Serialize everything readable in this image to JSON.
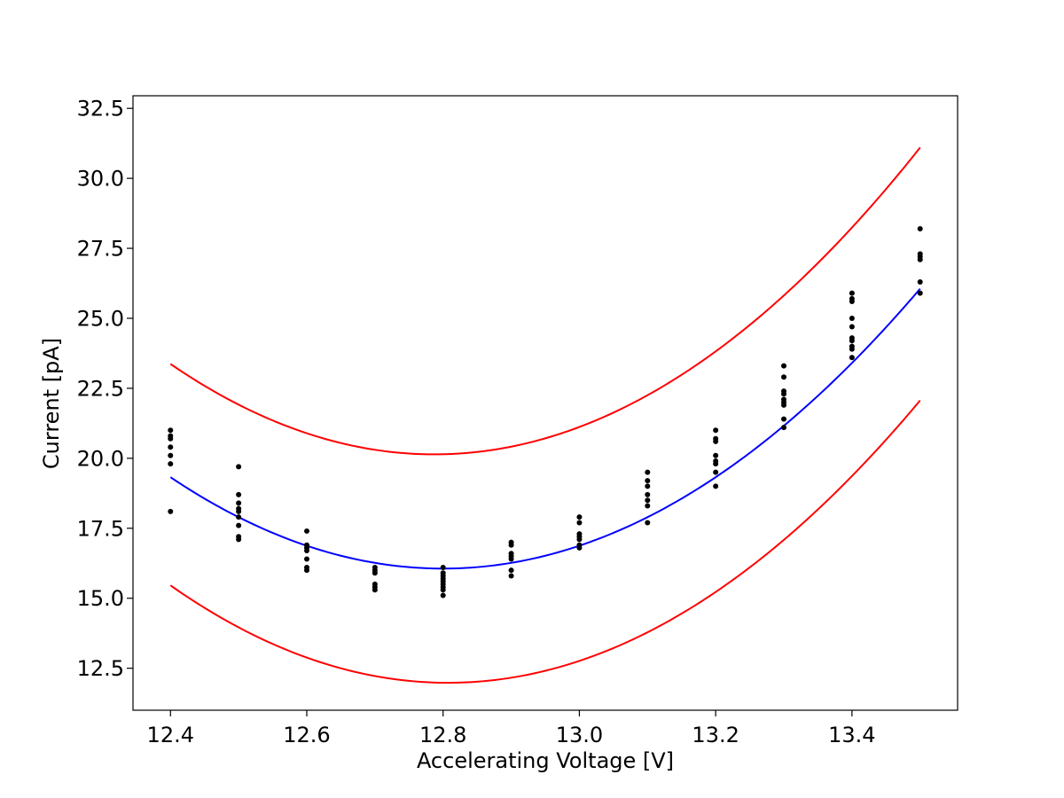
{
  "chart_data": {
    "type": "scatter",
    "title": "",
    "xlabel": "Accelerating Voltage [V]",
    "ylabel": "Current [pA]",
    "xlim": [
      12.345,
      13.555
    ],
    "ylim": [
      11.0,
      32.95
    ],
    "xticks": [
      12.4,
      12.6,
      12.8,
      13.0,
      13.2,
      13.4
    ],
    "xtick_labels": [
      "12.4",
      "12.6",
      "12.8",
      "13.0",
      "13.2",
      "13.4"
    ],
    "yticks": [
      12.5,
      15.0,
      17.5,
      20.0,
      22.5,
      25.0,
      27.5,
      30.0,
      32.5
    ],
    "ytick_labels": [
      "12.5",
      "15.0",
      "17.5",
      "20.0",
      "22.5",
      "25.0",
      "27.5",
      "30.0",
      "32.5"
    ],
    "grid": false,
    "series": [
      {
        "kind": "scatter",
        "color": "#000000",
        "points": [
          [
            12.4,
            21.0
          ],
          [
            12.4,
            20.8
          ],
          [
            12.4,
            20.7
          ],
          [
            12.4,
            20.4
          ],
          [
            12.4,
            20.1
          ],
          [
            12.4,
            19.8
          ],
          [
            12.4,
            18.1
          ],
          [
            12.5,
            19.7
          ],
          [
            12.5,
            18.7
          ],
          [
            12.5,
            18.4
          ],
          [
            12.5,
            18.2
          ],
          [
            12.5,
            18.1
          ],
          [
            12.5,
            17.9
          ],
          [
            12.5,
            17.6
          ],
          [
            12.5,
            17.2
          ],
          [
            12.5,
            17.1
          ],
          [
            12.6,
            17.4
          ],
          [
            12.6,
            16.9
          ],
          [
            12.6,
            16.8
          ],
          [
            12.6,
            16.7
          ],
          [
            12.6,
            16.4
          ],
          [
            12.6,
            16.1
          ],
          [
            12.6,
            16.0
          ],
          [
            12.7,
            16.1
          ],
          [
            12.7,
            16.0
          ],
          [
            12.7,
            15.9
          ],
          [
            12.7,
            15.5
          ],
          [
            12.7,
            15.4
          ],
          [
            12.7,
            15.3
          ],
          [
            12.8,
            16.1
          ],
          [
            12.8,
            15.9
          ],
          [
            12.8,
            15.8
          ],
          [
            12.8,
            15.7
          ],
          [
            12.8,
            15.6
          ],
          [
            12.8,
            15.5
          ],
          [
            12.8,
            15.4
          ],
          [
            12.8,
            15.3
          ],
          [
            12.8,
            15.1
          ],
          [
            12.9,
            17.0
          ],
          [
            12.9,
            16.9
          ],
          [
            12.9,
            16.6
          ],
          [
            12.9,
            16.5
          ],
          [
            12.9,
            16.4
          ],
          [
            12.9,
            16.0
          ],
          [
            12.9,
            15.8
          ],
          [
            13.0,
            17.9
          ],
          [
            13.0,
            17.7
          ],
          [
            13.0,
            17.3
          ],
          [
            13.0,
            17.2
          ],
          [
            13.0,
            17.1
          ],
          [
            13.0,
            16.9
          ],
          [
            13.0,
            16.8
          ],
          [
            13.1,
            19.5
          ],
          [
            13.1,
            19.2
          ],
          [
            13.1,
            19.0
          ],
          [
            13.1,
            18.7
          ],
          [
            13.1,
            18.5
          ],
          [
            13.1,
            18.3
          ],
          [
            13.1,
            17.7
          ],
          [
            13.2,
            21.0
          ],
          [
            13.2,
            20.7
          ],
          [
            13.2,
            20.6
          ],
          [
            13.2,
            20.1
          ],
          [
            13.2,
            19.9
          ],
          [
            13.2,
            19.8
          ],
          [
            13.2,
            19.5
          ],
          [
            13.2,
            19.0
          ],
          [
            13.3,
            23.3
          ],
          [
            13.3,
            22.9
          ],
          [
            13.3,
            22.4
          ],
          [
            13.3,
            22.3
          ],
          [
            13.3,
            22.1
          ],
          [
            13.3,
            22.0
          ],
          [
            13.3,
            21.9
          ],
          [
            13.3,
            21.4
          ],
          [
            13.3,
            21.1
          ],
          [
            13.4,
            25.9
          ],
          [
            13.4,
            25.7
          ],
          [
            13.4,
            25.6
          ],
          [
            13.4,
            25.0
          ],
          [
            13.4,
            24.7
          ],
          [
            13.4,
            24.3
          ],
          [
            13.4,
            24.2
          ],
          [
            13.4,
            24.0
          ],
          [
            13.4,
            23.9
          ],
          [
            13.4,
            23.6
          ],
          [
            13.5,
            28.2
          ],
          [
            13.5,
            27.3
          ],
          [
            13.5,
            27.2
          ],
          [
            13.5,
            27.1
          ],
          [
            13.5,
            26.3
          ],
          [
            13.5,
            25.9
          ]
        ]
      },
      {
        "kind": "line",
        "color": "#0000ff",
        "x_range": [
          12.4,
          13.5
        ],
        "quadratic": {
          "vertex_x": 12.8,
          "vertex_y": 16.06,
          "a": 20.4
        }
      },
      {
        "kind": "line",
        "color": "#ff0000",
        "x_range": [
          12.4,
          13.5
        ],
        "quadratic": {
          "vertex_x": 12.787,
          "vertex_y": 20.14,
          "a": 21.56
        }
      },
      {
        "kind": "line",
        "color": "#ff0000",
        "x_range": [
          12.4,
          13.5
        ],
        "quadratic": {
          "vertex_x": 12.807,
          "vertex_y": 11.98,
          "a": 21.0
        }
      }
    ]
  }
}
